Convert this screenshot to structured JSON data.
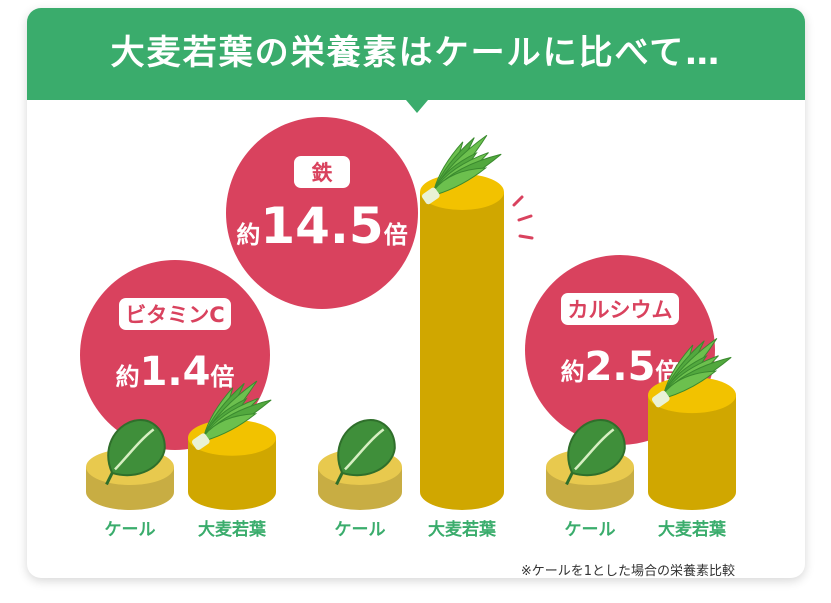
{
  "title": "大麦若葉の栄養素はケールに比べて…",
  "footnote": "※ケールを1とした場合の栄養素比較",
  "colors": {
    "banner": "#3aac6c",
    "bubble": "#d9425e",
    "barley_bar": "#f2c200",
    "kale_bar": "#e8c94e",
    "label_text": "#3aac6c"
  },
  "icons": {
    "kale": "kale-leaf-icon",
    "barley": "barley-grass-icon"
  },
  "chart_data": {
    "type": "bar",
    "categories": [
      "ビタミンC",
      "鉄",
      "カルシウム"
    ],
    "series": [
      {
        "name": "ケール",
        "values": [
          1,
          1,
          1
        ]
      },
      {
        "name": "大麦若葉",
        "values": [
          1.4,
          14.5,
          2.5
        ]
      }
    ],
    "callouts": [
      {
        "nutrient": "ビタミンC",
        "prefix": "約",
        "value": "1.4",
        "suffix": "倍"
      },
      {
        "nutrient": "鉄",
        "prefix": "約",
        "value": "14.5",
        "suffix": "倍"
      },
      {
        "nutrient": "カルシウム",
        "prefix": "約",
        "value": "2.5",
        "suffix": "倍"
      }
    ]
  }
}
